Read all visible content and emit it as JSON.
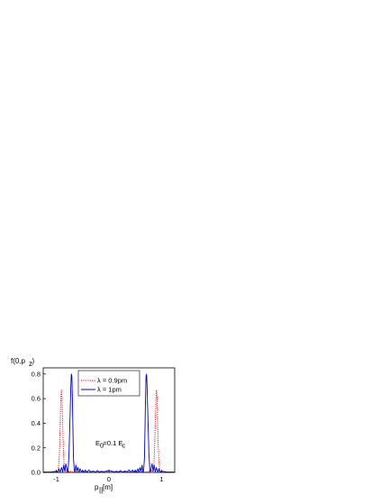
{
  "chart_data": {
    "type": "line",
    "ylabel": "f(0,p",
    "ylabel_sub": "z",
    "ylabel_close": ")",
    "xlabel": "p",
    "xlabel_sub": "||",
    "xlabel_unit": " [m]",
    "xlim": [
      -1.25,
      1.25
    ],
    "ylim": [
      0,
      0.85
    ],
    "xticks": [
      -1,
      0,
      1
    ],
    "xtick_labels": [
      "-1",
      "0",
      "1"
    ],
    "yticks": [
      0.0,
      0.2,
      0.4,
      0.6,
      0.8
    ],
    "ytick_labels": [
      "0.0",
      "0.2",
      "0.4",
      "0.6",
      "0.8"
    ],
    "grid": false,
    "legend_position": "top-center",
    "annotation": {
      "main": "E",
      "main_sub": "0",
      "rest": "=0.1 E",
      "rest_sub": "c"
    },
    "series": [
      {
        "name": "λ = 0.9pm",
        "color": "#ff0000",
        "style": "dotted",
        "x": [
          -1.25,
          -1.1,
          -1.05,
          -1.0,
          -0.97,
          -0.96,
          -0.94,
          -0.925,
          -0.915,
          -0.905,
          -0.895,
          -0.88,
          -0.865,
          -0.85,
          -0.835,
          -0.82,
          -0.8,
          -0.78,
          -0.76,
          -0.73,
          -0.7,
          -0.6,
          -0.4,
          -0.2,
          0.0,
          0.2,
          0.4,
          0.6,
          0.7,
          0.73,
          0.76,
          0.78,
          0.8,
          0.82,
          0.835,
          0.85,
          0.865,
          0.88,
          0.895,
          0.905,
          0.915,
          0.925,
          0.94,
          0.96,
          0.97,
          1.0,
          1.05,
          1.1,
          1.25
        ],
        "y": [
          0.003,
          0.004,
          0.006,
          0.01,
          0.015,
          0.04,
          0.17,
          0.42,
          0.61,
          0.67,
          0.61,
          0.4,
          0.17,
          0.03,
          0.01,
          0.02,
          0.005,
          0.02,
          0.004,
          0.008,
          0.003,
          0.004,
          0.005,
          0.006,
          0.006,
          0.006,
          0.005,
          0.004,
          0.003,
          0.008,
          0.004,
          0.02,
          0.005,
          0.02,
          0.01,
          0.03,
          0.17,
          0.4,
          0.61,
          0.67,
          0.61,
          0.42,
          0.17,
          0.04,
          0.015,
          0.01,
          0.006,
          0.004,
          0.003
        ]
      },
      {
        "name": "λ = 1pm",
        "color": "#0000cc",
        "style": "solid",
        "x": [
          -1.25,
          -1.1,
          -1.0,
          -0.97,
          -0.95,
          -0.93,
          -0.9,
          -0.88,
          -0.86,
          -0.84,
          -0.82,
          -0.8,
          -0.78,
          -0.76,
          -0.74,
          -0.725,
          -0.715,
          -0.705,
          -0.695,
          -0.685,
          -0.675,
          -0.66,
          -0.645,
          -0.63,
          -0.61,
          -0.59,
          -0.57,
          -0.55,
          -0.52,
          -0.5,
          -0.48,
          -0.45,
          -0.42,
          -0.38,
          -0.34,
          -0.3,
          -0.26,
          -0.22,
          -0.18,
          -0.14,
          -0.1,
          -0.05,
          0.0,
          0.05,
          0.1,
          0.14,
          0.18,
          0.22,
          0.26,
          0.3,
          0.34,
          0.38,
          0.42,
          0.45,
          0.48,
          0.5,
          0.52,
          0.55,
          0.57,
          0.59,
          0.61,
          0.63,
          0.645,
          0.66,
          0.675,
          0.685,
          0.695,
          0.705,
          0.715,
          0.725,
          0.74,
          0.76,
          0.78,
          0.8,
          0.82,
          0.84,
          0.86,
          0.88,
          0.9,
          0.93,
          0.95,
          0.97,
          1.0,
          1.1,
          1.25
        ],
        "y": [
          0.002,
          0.004,
          0.01,
          0.002,
          0.03,
          0.002,
          0.04,
          0.002,
          0.06,
          0.01,
          0.07,
          0.03,
          0.0,
          0.15,
          0.45,
          0.7,
          0.8,
          0.78,
          0.6,
          0.35,
          0.12,
          0.02,
          0.0,
          0.06,
          0.01,
          0.04,
          0.0,
          0.03,
          0.002,
          0.02,
          0.0,
          0.02,
          0.002,
          0.02,
          0.004,
          0.012,
          0.002,
          0.015,
          0.004,
          0.01,
          0.004,
          0.012,
          0.015,
          0.012,
          0.004,
          0.01,
          0.004,
          0.015,
          0.002,
          0.012,
          0.004,
          0.02,
          0.002,
          0.02,
          0.0,
          0.02,
          0.002,
          0.03,
          0.0,
          0.04,
          0.01,
          0.06,
          0.0,
          0.02,
          0.12,
          0.35,
          0.6,
          0.78,
          0.8,
          0.7,
          0.45,
          0.15,
          0.0,
          0.03,
          0.07,
          0.01,
          0.06,
          0.002,
          0.04,
          0.002,
          0.03,
          0.002,
          0.01,
          0.004,
          0.002
        ]
      }
    ]
  }
}
